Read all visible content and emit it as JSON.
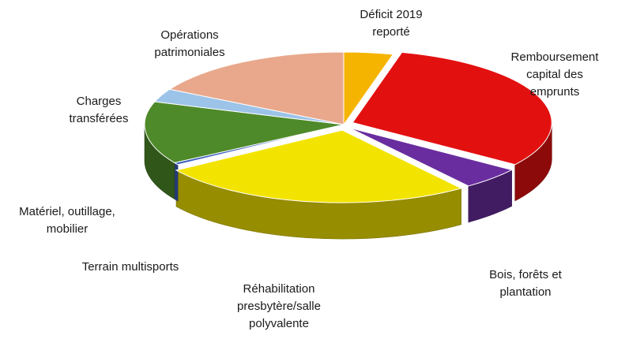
{
  "chart_data": {
    "type": "pie",
    "style": "3d-exploded",
    "title": "",
    "legend": "none",
    "slices": [
      {
        "label": "Déficit 2019 reporté",
        "label_lines": [
          "Déficit 2019",
          "reporté"
        ],
        "value": 4,
        "color": "#f5b400"
      },
      {
        "label": "Remboursement capital des emprunts",
        "label_lines": [
          "Remboursement",
          "capital des",
          "emprunts"
        ],
        "value": 31,
        "color": "#e31010"
      },
      {
        "label": "Bois, forêts et plantation",
        "label_lines": [
          "Bois, forêts et",
          "plantation"
        ],
        "value": 5,
        "color": "#6a2d9f"
      },
      {
        "label": "Réhabilitation presbytère/salle polyvalente",
        "label_lines": [
          "Réhabilitation",
          "presbytère/salle",
          "polyvalente"
        ],
        "value": 26,
        "color": "#f2e400"
      },
      {
        "label": "Terrain multisports",
        "label_lines": [
          "Terrain multisports"
        ],
        "value": 0.5,
        "color": "#3a5fc0"
      },
      {
        "label": "Matériel, outillage, mobilier",
        "label_lines": [
          "Matériel, outillage,",
          "mobilier"
        ],
        "value": 14,
        "color": "#4f8a2a"
      },
      {
        "label": "Charges transférées",
        "label_lines": [
          "Charges",
          "transférées"
        ],
        "value": 3,
        "color": "#9cc3e8"
      },
      {
        "label": "Opérations patrimoniales",
        "label_lines": [
          "Opérations",
          "patrimoniales"
        ],
        "value": 17,
        "color": "#e9a88c"
      }
    ]
  }
}
